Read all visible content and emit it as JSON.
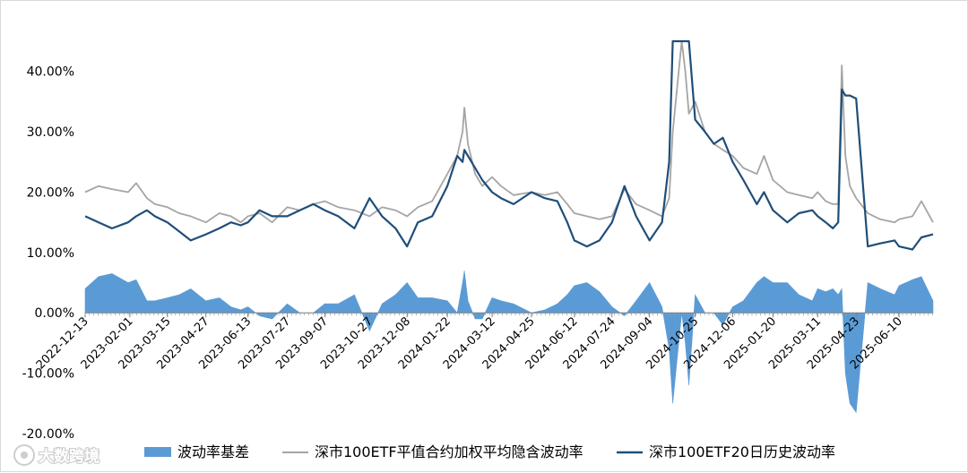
{
  "watermark": {
    "text": "大数跨境"
  },
  "colors": {
    "spread": "#5b9bd5",
    "implied": "#a5a5a5",
    "historical": "#1f4e79"
  },
  "chart_data": {
    "type": "line",
    "ylim": [
      -0.2,
      0.45
    ],
    "y_ticks": [
      "-20.00%",
      "-10.00%",
      "0.00%",
      "10.00%",
      "20.00%",
      "30.00%",
      "40.00%"
    ],
    "x_ticks": [
      "2022-12-13",
      "2023-02-01",
      "2023-03-15",
      "2023-04-27",
      "2023-06-13",
      "2023-07-27",
      "2023-09-07",
      "2023-10-27",
      "2023-12-08",
      "2024-01-22",
      "2024-03-12",
      "2024-04-25",
      "2024-06-12",
      "2024-07-24",
      "2024-09-04",
      "2024-10-25",
      "2024-12-06",
      "2025-01-20",
      "2025-03-11",
      "2025-04-23",
      "2025-06-10"
    ],
    "x_start": "2022-12-13",
    "x_end": "2025-07-18",
    "series": [
      {
        "name": "深市100ETF平值合约加权平均隐含波动率",
        "type": "line",
        "points": [
          [
            "2022-12-13",
            0.2
          ],
          [
            "2022-12-28",
            0.21
          ],
          [
            "2023-01-12",
            0.205
          ],
          [
            "2023-01-30",
            0.2
          ],
          [
            "2023-02-08",
            0.215
          ],
          [
            "2023-02-20",
            0.19
          ],
          [
            "2023-03-01",
            0.18
          ],
          [
            "2023-03-15",
            0.175
          ],
          [
            "2023-03-28",
            0.165
          ],
          [
            "2023-04-10",
            0.16
          ],
          [
            "2023-04-27",
            0.15
          ],
          [
            "2023-05-12",
            0.165
          ],
          [
            "2023-05-25",
            0.16
          ],
          [
            "2023-06-05",
            0.15
          ],
          [
            "2023-06-13",
            0.16
          ],
          [
            "2023-06-26",
            0.165
          ],
          [
            "2023-07-10",
            0.15
          ],
          [
            "2023-07-27",
            0.175
          ],
          [
            "2023-08-10",
            0.17
          ],
          [
            "2023-08-25",
            0.18
          ],
          [
            "2023-09-07",
            0.185
          ],
          [
            "2023-09-22",
            0.175
          ],
          [
            "2023-10-10",
            0.17
          ],
          [
            "2023-10-27",
            0.16
          ],
          [
            "2023-11-10",
            0.175
          ],
          [
            "2023-11-25",
            0.17
          ],
          [
            "2023-12-08",
            0.16
          ],
          [
            "2023-12-20",
            0.175
          ],
          [
            "2024-01-05",
            0.185
          ],
          [
            "2024-01-22",
            0.23
          ],
          [
            "2024-02-02",
            0.26
          ],
          [
            "2024-02-08",
            0.3
          ],
          [
            "2024-02-10",
            0.34
          ],
          [
            "2024-02-14",
            0.28
          ],
          [
            "2024-02-22",
            0.23
          ],
          [
            "2024-03-01",
            0.21
          ],
          [
            "2024-03-12",
            0.225
          ],
          [
            "2024-03-22",
            0.21
          ],
          [
            "2024-04-05",
            0.195
          ],
          [
            "2024-04-25",
            0.2
          ],
          [
            "2024-05-10",
            0.195
          ],
          [
            "2024-05-24",
            0.2
          ],
          [
            "2024-06-04",
            0.18
          ],
          [
            "2024-06-12",
            0.165
          ],
          [
            "2024-06-26",
            0.16
          ],
          [
            "2024-07-10",
            0.155
          ],
          [
            "2024-07-24",
            0.16
          ],
          [
            "2024-08-07",
            0.205
          ],
          [
            "2024-08-20",
            0.18
          ],
          [
            "2024-09-04",
            0.17
          ],
          [
            "2024-09-18",
            0.16
          ],
          [
            "2024-09-26",
            0.19
          ],
          [
            "2024-09-30",
            0.3
          ],
          [
            "2024-10-08",
            0.42
          ],
          [
            "2024-10-10",
            0.45
          ],
          [
            "2024-10-14",
            0.4
          ],
          [
            "2024-10-18",
            0.33
          ],
          [
            "2024-10-25",
            0.35
          ],
          [
            "2024-11-05",
            0.3
          ],
          [
            "2024-11-15",
            0.28
          ],
          [
            "2024-11-25",
            0.27
          ],
          [
            "2024-12-06",
            0.26
          ],
          [
            "2024-12-18",
            0.24
          ],
          [
            "2025-01-02",
            0.23
          ],
          [
            "2025-01-10",
            0.26
          ],
          [
            "2025-01-20",
            0.22
          ],
          [
            "2025-02-05",
            0.2
          ],
          [
            "2025-02-18",
            0.195
          ],
          [
            "2025-03-05",
            0.19
          ],
          [
            "2025-03-11",
            0.2
          ],
          [
            "2025-03-20",
            0.185
          ],
          [
            "2025-03-28",
            0.18
          ],
          [
            "2025-04-03",
            0.18
          ],
          [
            "2025-04-07",
            0.41
          ],
          [
            "2025-04-11",
            0.26
          ],
          [
            "2025-04-16",
            0.21
          ],
          [
            "2025-04-23",
            0.19
          ],
          [
            "2025-05-06",
            0.165
          ],
          [
            "2025-05-20",
            0.155
          ],
          [
            "2025-06-05",
            0.15
          ],
          [
            "2025-06-10",
            0.155
          ],
          [
            "2025-06-25",
            0.16
          ],
          [
            "2025-07-05",
            0.185
          ],
          [
            "2025-07-18",
            0.15
          ]
        ]
      },
      {
        "name": "深市100ETF20日历史波动率",
        "type": "line",
        "points": [
          [
            "2022-12-13",
            0.16
          ],
          [
            "2022-12-28",
            0.15
          ],
          [
            "2023-01-12",
            0.14
          ],
          [
            "2023-01-30",
            0.15
          ],
          [
            "2023-02-08",
            0.16
          ],
          [
            "2023-02-20",
            0.17
          ],
          [
            "2023-03-01",
            0.16
          ],
          [
            "2023-03-15",
            0.15
          ],
          [
            "2023-03-28",
            0.135
          ],
          [
            "2023-04-10",
            0.12
          ],
          [
            "2023-04-27",
            0.13
          ],
          [
            "2023-05-12",
            0.14
          ],
          [
            "2023-05-25",
            0.15
          ],
          [
            "2023-06-05",
            0.145
          ],
          [
            "2023-06-13",
            0.15
          ],
          [
            "2023-06-26",
            0.17
          ],
          [
            "2023-07-10",
            0.16
          ],
          [
            "2023-07-27",
            0.16
          ],
          [
            "2023-08-10",
            0.17
          ],
          [
            "2023-08-25",
            0.18
          ],
          [
            "2023-09-07",
            0.17
          ],
          [
            "2023-09-22",
            0.16
          ],
          [
            "2023-10-10",
            0.14
          ],
          [
            "2023-10-27",
            0.19
          ],
          [
            "2023-11-10",
            0.16
          ],
          [
            "2023-11-25",
            0.14
          ],
          [
            "2023-12-08",
            0.11
          ],
          [
            "2023-12-20",
            0.15
          ],
          [
            "2024-01-05",
            0.16
          ],
          [
            "2024-01-22",
            0.21
          ],
          [
            "2024-02-02",
            0.26
          ],
          [
            "2024-02-08",
            0.25
          ],
          [
            "2024-02-10",
            0.27
          ],
          [
            "2024-02-14",
            0.26
          ],
          [
            "2024-02-22",
            0.24
          ],
          [
            "2024-03-01",
            0.22
          ],
          [
            "2024-03-12",
            0.2
          ],
          [
            "2024-03-22",
            0.19
          ],
          [
            "2024-04-05",
            0.18
          ],
          [
            "2024-04-25",
            0.2
          ],
          [
            "2024-05-10",
            0.19
          ],
          [
            "2024-05-24",
            0.185
          ],
          [
            "2024-06-04",
            0.15
          ],
          [
            "2024-06-12",
            0.12
          ],
          [
            "2024-06-26",
            0.11
          ],
          [
            "2024-07-10",
            0.12
          ],
          [
            "2024-07-24",
            0.15
          ],
          [
            "2024-08-07",
            0.21
          ],
          [
            "2024-08-20",
            0.16
          ],
          [
            "2024-09-04",
            0.12
          ],
          [
            "2024-09-18",
            0.15
          ],
          [
            "2024-09-26",
            0.25
          ],
          [
            "2024-09-30",
            0.45
          ],
          [
            "2024-10-08",
            0.45
          ],
          [
            "2024-10-10",
            0.45
          ],
          [
            "2024-10-14",
            0.45
          ],
          [
            "2024-10-18",
            0.45
          ],
          [
            "2024-10-25",
            0.32
          ],
          [
            "2024-11-05",
            0.3
          ],
          [
            "2024-11-15",
            0.28
          ],
          [
            "2024-11-25",
            0.29
          ],
          [
            "2024-12-06",
            0.25
          ],
          [
            "2024-12-18",
            0.22
          ],
          [
            "2025-01-02",
            0.18
          ],
          [
            "2025-01-10",
            0.2
          ],
          [
            "2025-01-20",
            0.17
          ],
          [
            "2025-02-05",
            0.15
          ],
          [
            "2025-02-18",
            0.165
          ],
          [
            "2025-03-05",
            0.17
          ],
          [
            "2025-03-11",
            0.16
          ],
          [
            "2025-03-20",
            0.15
          ],
          [
            "2025-03-28",
            0.14
          ],
          [
            "2025-04-03",
            0.15
          ],
          [
            "2025-04-07",
            0.37
          ],
          [
            "2025-04-11",
            0.36
          ],
          [
            "2025-04-16",
            0.36
          ],
          [
            "2025-04-23",
            0.355
          ],
          [
            "2025-05-06",
            0.11
          ],
          [
            "2025-05-20",
            0.115
          ],
          [
            "2025-06-05",
            0.12
          ],
          [
            "2025-06-10",
            0.11
          ],
          [
            "2025-06-25",
            0.105
          ],
          [
            "2025-07-05",
            0.125
          ],
          [
            "2025-07-18",
            0.13
          ]
        ]
      },
      {
        "name": "波动率基差",
        "type": "area",
        "points": [
          [
            "2022-12-13",
            0.04
          ],
          [
            "2022-12-28",
            0.06
          ],
          [
            "2023-01-12",
            0.065
          ],
          [
            "2023-01-30",
            0.05
          ],
          [
            "2023-02-08",
            0.055
          ],
          [
            "2023-02-20",
            0.02
          ],
          [
            "2023-03-01",
            0.02
          ],
          [
            "2023-03-15",
            0.025
          ],
          [
            "2023-03-28",
            0.03
          ],
          [
            "2023-04-10",
            0.04
          ],
          [
            "2023-04-27",
            0.02
          ],
          [
            "2023-05-12",
            0.025
          ],
          [
            "2023-05-25",
            0.01
          ],
          [
            "2023-06-05",
            0.005
          ],
          [
            "2023-06-13",
            0.01
          ],
          [
            "2023-06-26",
            -0.005
          ],
          [
            "2023-07-10",
            -0.01
          ],
          [
            "2023-07-27",
            0.015
          ],
          [
            "2023-08-10",
            0.0
          ],
          [
            "2023-08-25",
            0.0
          ],
          [
            "2023-09-07",
            0.015
          ],
          [
            "2023-09-22",
            0.015
          ],
          [
            "2023-10-10",
            0.03
          ],
          [
            "2023-10-27",
            -0.03
          ],
          [
            "2023-11-10",
            0.015
          ],
          [
            "2023-11-25",
            0.03
          ],
          [
            "2023-12-08",
            0.05
          ],
          [
            "2023-12-20",
            0.025
          ],
          [
            "2024-01-05",
            0.025
          ],
          [
            "2024-01-22",
            0.02
          ],
          [
            "2024-02-02",
            0.0
          ],
          [
            "2024-02-08",
            0.05
          ],
          [
            "2024-02-10",
            0.07
          ],
          [
            "2024-02-14",
            0.02
          ],
          [
            "2024-02-22",
            -0.01
          ],
          [
            "2024-03-01",
            -0.01
          ],
          [
            "2024-03-12",
            0.025
          ],
          [
            "2024-03-22",
            0.02
          ],
          [
            "2024-04-05",
            0.015
          ],
          [
            "2024-04-25",
            0.0
          ],
          [
            "2024-05-10",
            0.005
          ],
          [
            "2024-05-24",
            0.015
          ],
          [
            "2024-06-04",
            0.03
          ],
          [
            "2024-06-12",
            0.045
          ],
          [
            "2024-06-26",
            0.05
          ],
          [
            "2024-07-10",
            0.035
          ],
          [
            "2024-07-24",
            0.01
          ],
          [
            "2024-08-07",
            -0.005
          ],
          [
            "2024-08-20",
            0.02
          ],
          [
            "2024-09-04",
            0.05
          ],
          [
            "2024-09-18",
            0.01
          ],
          [
            "2024-09-26",
            -0.06
          ],
          [
            "2024-09-30",
            -0.15
          ],
          [
            "2024-10-08",
            -0.03
          ],
          [
            "2024-10-10",
            0.0
          ],
          [
            "2024-10-14",
            -0.05
          ],
          [
            "2024-10-18",
            -0.12
          ],
          [
            "2024-10-25",
            0.03
          ],
          [
            "2024-11-05",
            0.0
          ],
          [
            "2024-11-15",
            0.0
          ],
          [
            "2024-11-25",
            -0.02
          ],
          [
            "2024-12-06",
            0.01
          ],
          [
            "2024-12-18",
            0.02
          ],
          [
            "2025-01-02",
            0.05
          ],
          [
            "2025-01-10",
            0.06
          ],
          [
            "2025-01-20",
            0.05
          ],
          [
            "2025-02-05",
            0.05
          ],
          [
            "2025-02-18",
            0.03
          ],
          [
            "2025-03-05",
            0.02
          ],
          [
            "2025-03-11",
            0.04
          ],
          [
            "2025-03-20",
            0.035
          ],
          [
            "2025-03-28",
            0.04
          ],
          [
            "2025-04-03",
            0.03
          ],
          [
            "2025-04-07",
            0.04
          ],
          [
            "2025-04-11",
            -0.1
          ],
          [
            "2025-04-16",
            -0.15
          ],
          [
            "2025-04-23",
            -0.165
          ],
          [
            "2025-05-06",
            0.05
          ],
          [
            "2025-05-20",
            0.04
          ],
          [
            "2025-06-05",
            0.03
          ],
          [
            "2025-06-10",
            0.045
          ],
          [
            "2025-06-25",
            0.055
          ],
          [
            "2025-07-05",
            0.06
          ],
          [
            "2025-07-18",
            0.02
          ]
        ]
      }
    ],
    "legend": {
      "position": "bottom",
      "items": [
        "波动率基差",
        "深市100ETF平值合约加权平均隐含波动率",
        "深市100ETF20日历史波动率"
      ]
    },
    "grid": false
  }
}
